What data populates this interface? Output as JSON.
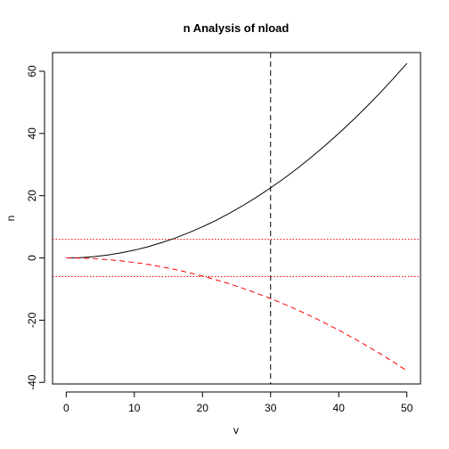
{
  "chart_data": {
    "type": "line",
    "title": "n Analysis of nload",
    "xlabel": "v",
    "ylabel": "n",
    "xlim": [
      -2,
      52
    ],
    "ylim": [
      -40.5,
      66
    ],
    "x_ticks": [
      0,
      10,
      20,
      30,
      40,
      50
    ],
    "y_ticks": [
      -40,
      -20,
      0,
      20,
      40,
      60
    ],
    "grid": false,
    "series": [
      {
        "color": "#000000",
        "style": "solid",
        "x": [
          0,
          2,
          4,
          6,
          8,
          10,
          12,
          14,
          16,
          18,
          20,
          22,
          24,
          26,
          28,
          30,
          32,
          34,
          36,
          38,
          40,
          42,
          44,
          46,
          48,
          50
        ],
        "values": [
          0,
          0.1,
          0.4,
          0.9,
          1.6,
          2.5,
          3.6,
          4.9,
          6.4,
          8.1,
          10.0,
          12.1,
          14.4,
          16.9,
          19.6,
          22.5,
          25.6,
          28.9,
          32.4,
          36.1,
          40.0,
          44.1,
          48.4,
          52.9,
          57.6,
          62.5
        ]
      },
      {
        "color": "#ff0000",
        "style": "dashed",
        "x": [
          0,
          2,
          4,
          6,
          8,
          10,
          12,
          14,
          16,
          18,
          20,
          22,
          24,
          26,
          28,
          30,
          32,
          34,
          36,
          38,
          40,
          42,
          44,
          46,
          48,
          50
        ],
        "values": [
          0,
          -0.06,
          -0.23,
          -0.52,
          -0.93,
          -1.45,
          -2.09,
          -2.84,
          -3.71,
          -4.7,
          -5.8,
          -7.02,
          -8.35,
          -9.8,
          -11.37,
          -13.05,
          -14.85,
          -16.76,
          -18.79,
          -20.94,
          -23.2,
          -25.58,
          -28.07,
          -30.68,
          -33.41,
          -36.25
        ]
      }
    ],
    "reference_lines": [
      {
        "orientation": "vertical",
        "value": 30,
        "color": "#000000",
        "style": "dashed"
      },
      {
        "orientation": "horizontal",
        "value": 6,
        "color": "#ff0000",
        "style": "dotted"
      },
      {
        "orientation": "horizontal",
        "value": -6,
        "color": "#ff0000",
        "style": "dotted"
      }
    ]
  }
}
